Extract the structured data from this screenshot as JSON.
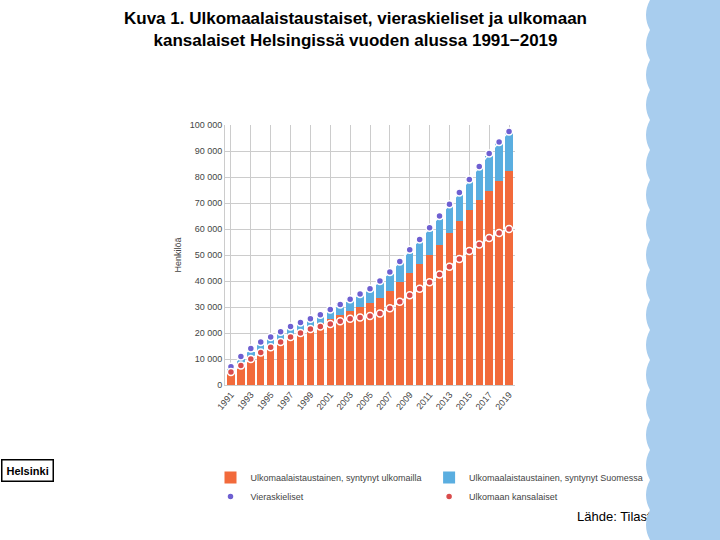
{
  "chart_data": {
    "type": "bar",
    "stacked": true,
    "title": "Kuva 1. Ulkomaalaistaustaiset, vieraskieliset ja ulkomaan\nkansalaiset Helsingissä vuoden alussa 1991−2019",
    "y_label": "Henkilöä",
    "source": "Lähde: Tilastokeskus",
    "logo": "Helsinki",
    "grid": true,
    "legend": "bottom",
    "x": [
      1991,
      1992,
      1993,
      1994,
      1995,
      1996,
      1997,
      1998,
      1999,
      2000,
      2001,
      2002,
      2003,
      2004,
      2005,
      2006,
      2007,
      2008,
      2009,
      2010,
      2011,
      2012,
      2013,
      2014,
      2015,
      2016,
      2017,
      2018,
      2019
    ],
    "xlim": [
      1990.4,
      2019.6
    ],
    "xticks": [
      1991,
      1993,
      1995,
      1997,
      1999,
      2001,
      2003,
      2005,
      2007,
      2009,
      2011,
      2013,
      2015,
      2017,
      2019
    ],
    "ylim": [
      0,
      100000
    ],
    "yticks": [
      {
        "value": 0,
        "label": "0"
      },
      {
        "value": 10000,
        "label": "10 000"
      },
      {
        "value": 20000,
        "label": "20 000"
      },
      {
        "value": 30000,
        "label": "30 000"
      },
      {
        "value": 40000,
        "label": "40 000"
      },
      {
        "value": 50000,
        "label": "50 000"
      },
      {
        "value": 60000,
        "label": "60 000"
      },
      {
        "value": 70000,
        "label": "70 000"
      },
      {
        "value": 80000,
        "label": "80 000"
      },
      {
        "value": 90000,
        "label": "90 000"
      },
      {
        "value": 100000,
        "label": "100 000"
      }
    ],
    "series": [
      {
        "name": "Ulkomaalaistaustainen, syntynyt ulkomailla",
        "type": "bar",
        "color": "#f26a3b",
        "values": [
          5000,
          8500,
          11000,
          13500,
          15500,
          17500,
          19500,
          21000,
          22500,
          24000,
          25500,
          27000,
          28500,
          30000,
          31500,
          33500,
          36000,
          39500,
          43000,
          46500,
          50000,
          54000,
          58500,
          63000,
          67500,
          71000,
          74500,
          78500,
          82500
        ]
      },
      {
        "name": "Ulkomaalaistaustainen, syntynyt Suomessa",
        "type": "bar",
        "color": "#5aaee0",
        "values": [
          1000,
          1500,
          1800,
          2100,
          2400,
          2700,
          3000,
          3300,
          3600,
          3900,
          4200,
          4600,
          5000,
          5400,
          5800,
          6300,
          6800,
          7300,
          7900,
          8500,
          9100,
          9800,
          10500,
          11200,
          12000,
          12800,
          13600,
          14400,
          15300
        ]
      },
      {
        "name": "Vieraskieliset",
        "type": "line",
        "marker": "circle",
        "color": "#6e5fd1",
        "values": [
          7000,
          11000,
          14000,
          16500,
          18500,
          20500,
          22500,
          24000,
          25500,
          27000,
          29000,
          31000,
          33000,
          35000,
          37000,
          40000,
          43500,
          47500,
          52000,
          56000,
          60500,
          65000,
          69500,
          74000,
          79000,
          84000,
          89000,
          93500,
          97500
        ]
      },
      {
        "name": "Ulkomaan kansalaiset",
        "type": "line",
        "marker": "circle",
        "color": "#d94b4b",
        "values": [
          5000,
          7500,
          10000,
          12500,
          14500,
          16500,
          18500,
          20000,
          21500,
          22500,
          23500,
          24500,
          25500,
          26000,
          26500,
          27500,
          29500,
          32000,
          34500,
          37000,
          39500,
          42500,
          45500,
          48500,
          51500,
          54000,
          56500,
          58500,
          60000
        ]
      }
    ]
  }
}
